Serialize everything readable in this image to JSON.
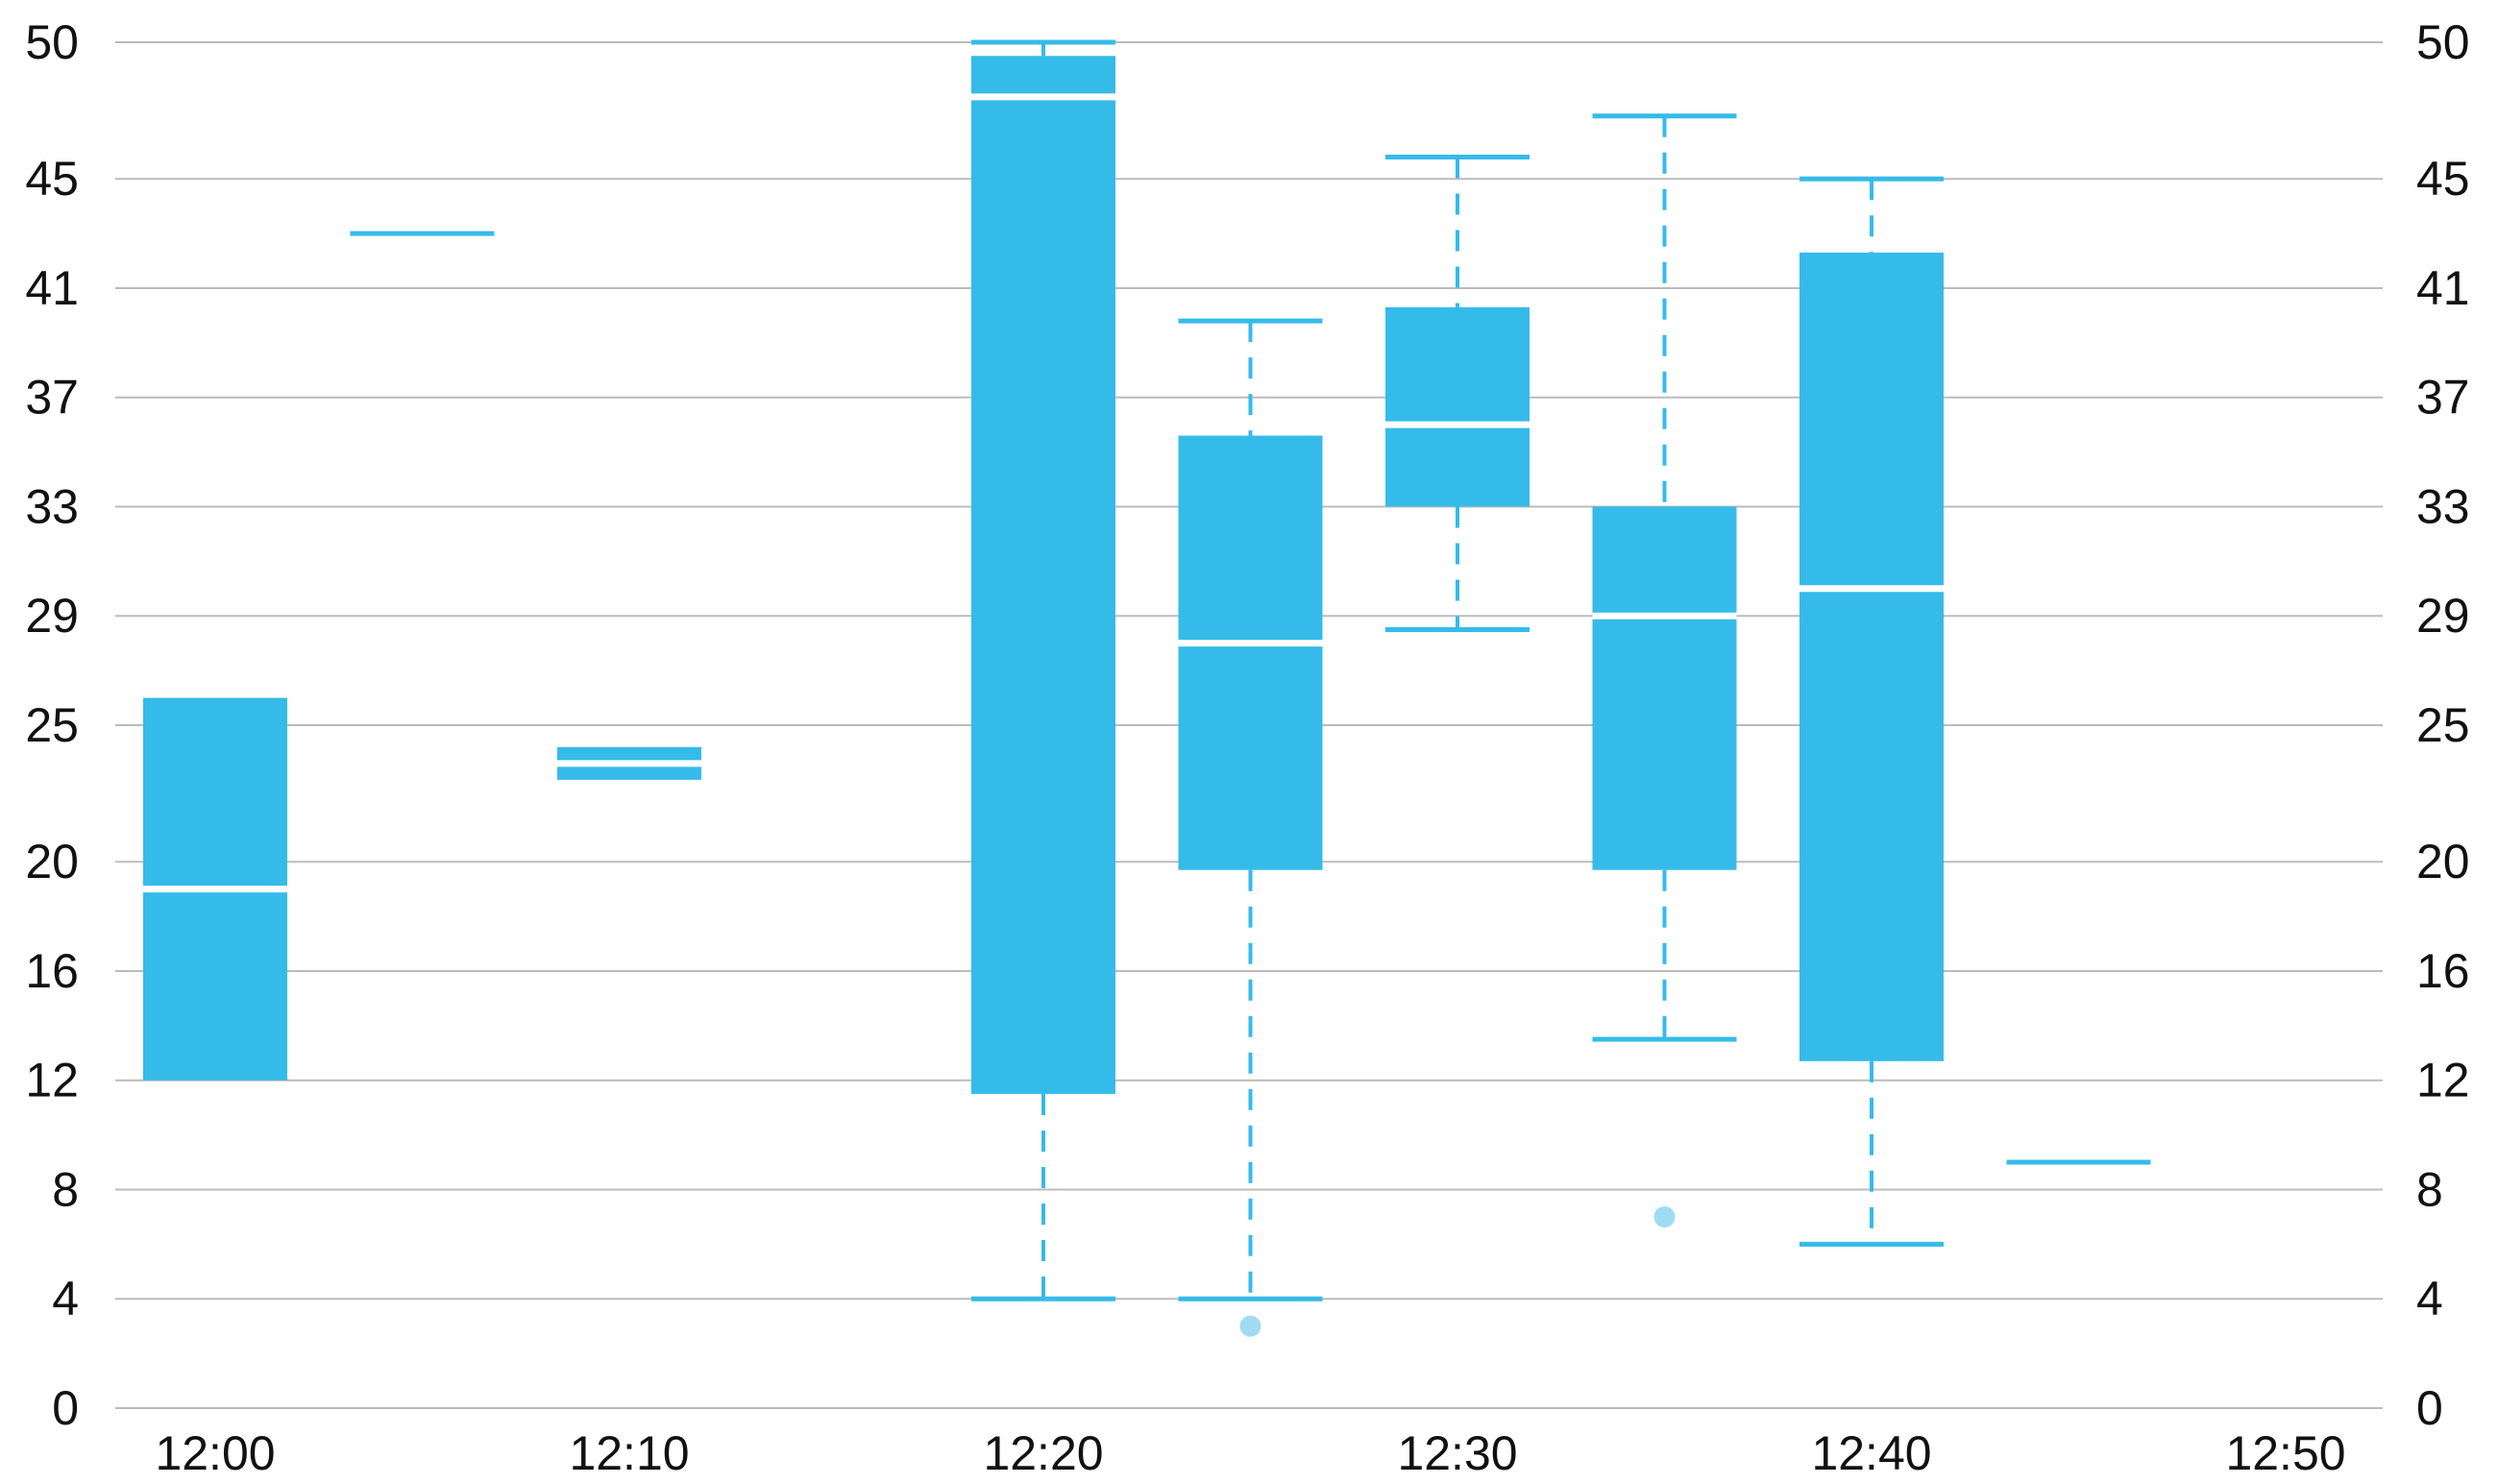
{
  "chart_data": {
    "type": "box",
    "x_ticks": [
      "12:00",
      "12:10",
      "12:20",
      "12:30",
      "12:40",
      "12:50"
    ],
    "y_ticks": [
      0,
      4,
      8,
      12,
      16,
      20,
      25,
      29,
      33,
      37,
      41,
      45,
      50
    ],
    "ylim": [
      0,
      50
    ],
    "right_axis_ticks": true,
    "grid": true,
    "colors": {
      "box": "#35BBEA",
      "outlier": "#9FDCF3",
      "grid": "#BBBBBB",
      "median": "#FFFFFF"
    },
    "boxes": [
      {
        "x": "12:00",
        "q1": 12,
        "median": 19,
        "q3": 26
      },
      {
        "x": "12:05",
        "q1": 43,
        "median": 43,
        "q3": 43
      },
      {
        "x": "12:10",
        "q1": 23,
        "median": 23.6,
        "q3": 24.2
      },
      {
        "x": "12:20",
        "min": 4,
        "q1": 11.5,
        "median": 48,
        "q3": 49.5,
        "max": 50
      },
      {
        "x": "12:25",
        "min": 4,
        "q1": 19.7,
        "median": 28,
        "q3": 35.6,
        "max": 39.8,
        "outliers": [
          3
        ]
      },
      {
        "x": "12:30",
        "min": 28.5,
        "q1": 33,
        "median": 36,
        "q3": 40.3,
        "max": 45.8
      },
      {
        "x": "12:35",
        "min": 13.5,
        "q1": 19.7,
        "median": 29,
        "q3": 33,
        "max": 47.3,
        "outliers": [
          7
        ]
      },
      {
        "x": "12:40",
        "min": 6,
        "q1": 12.7,
        "median": 30,
        "q3": 42.3,
        "max": 45
      },
      {
        "x": "12:45",
        "q1": 9,
        "median": 9,
        "q3": 9
      }
    ]
  }
}
